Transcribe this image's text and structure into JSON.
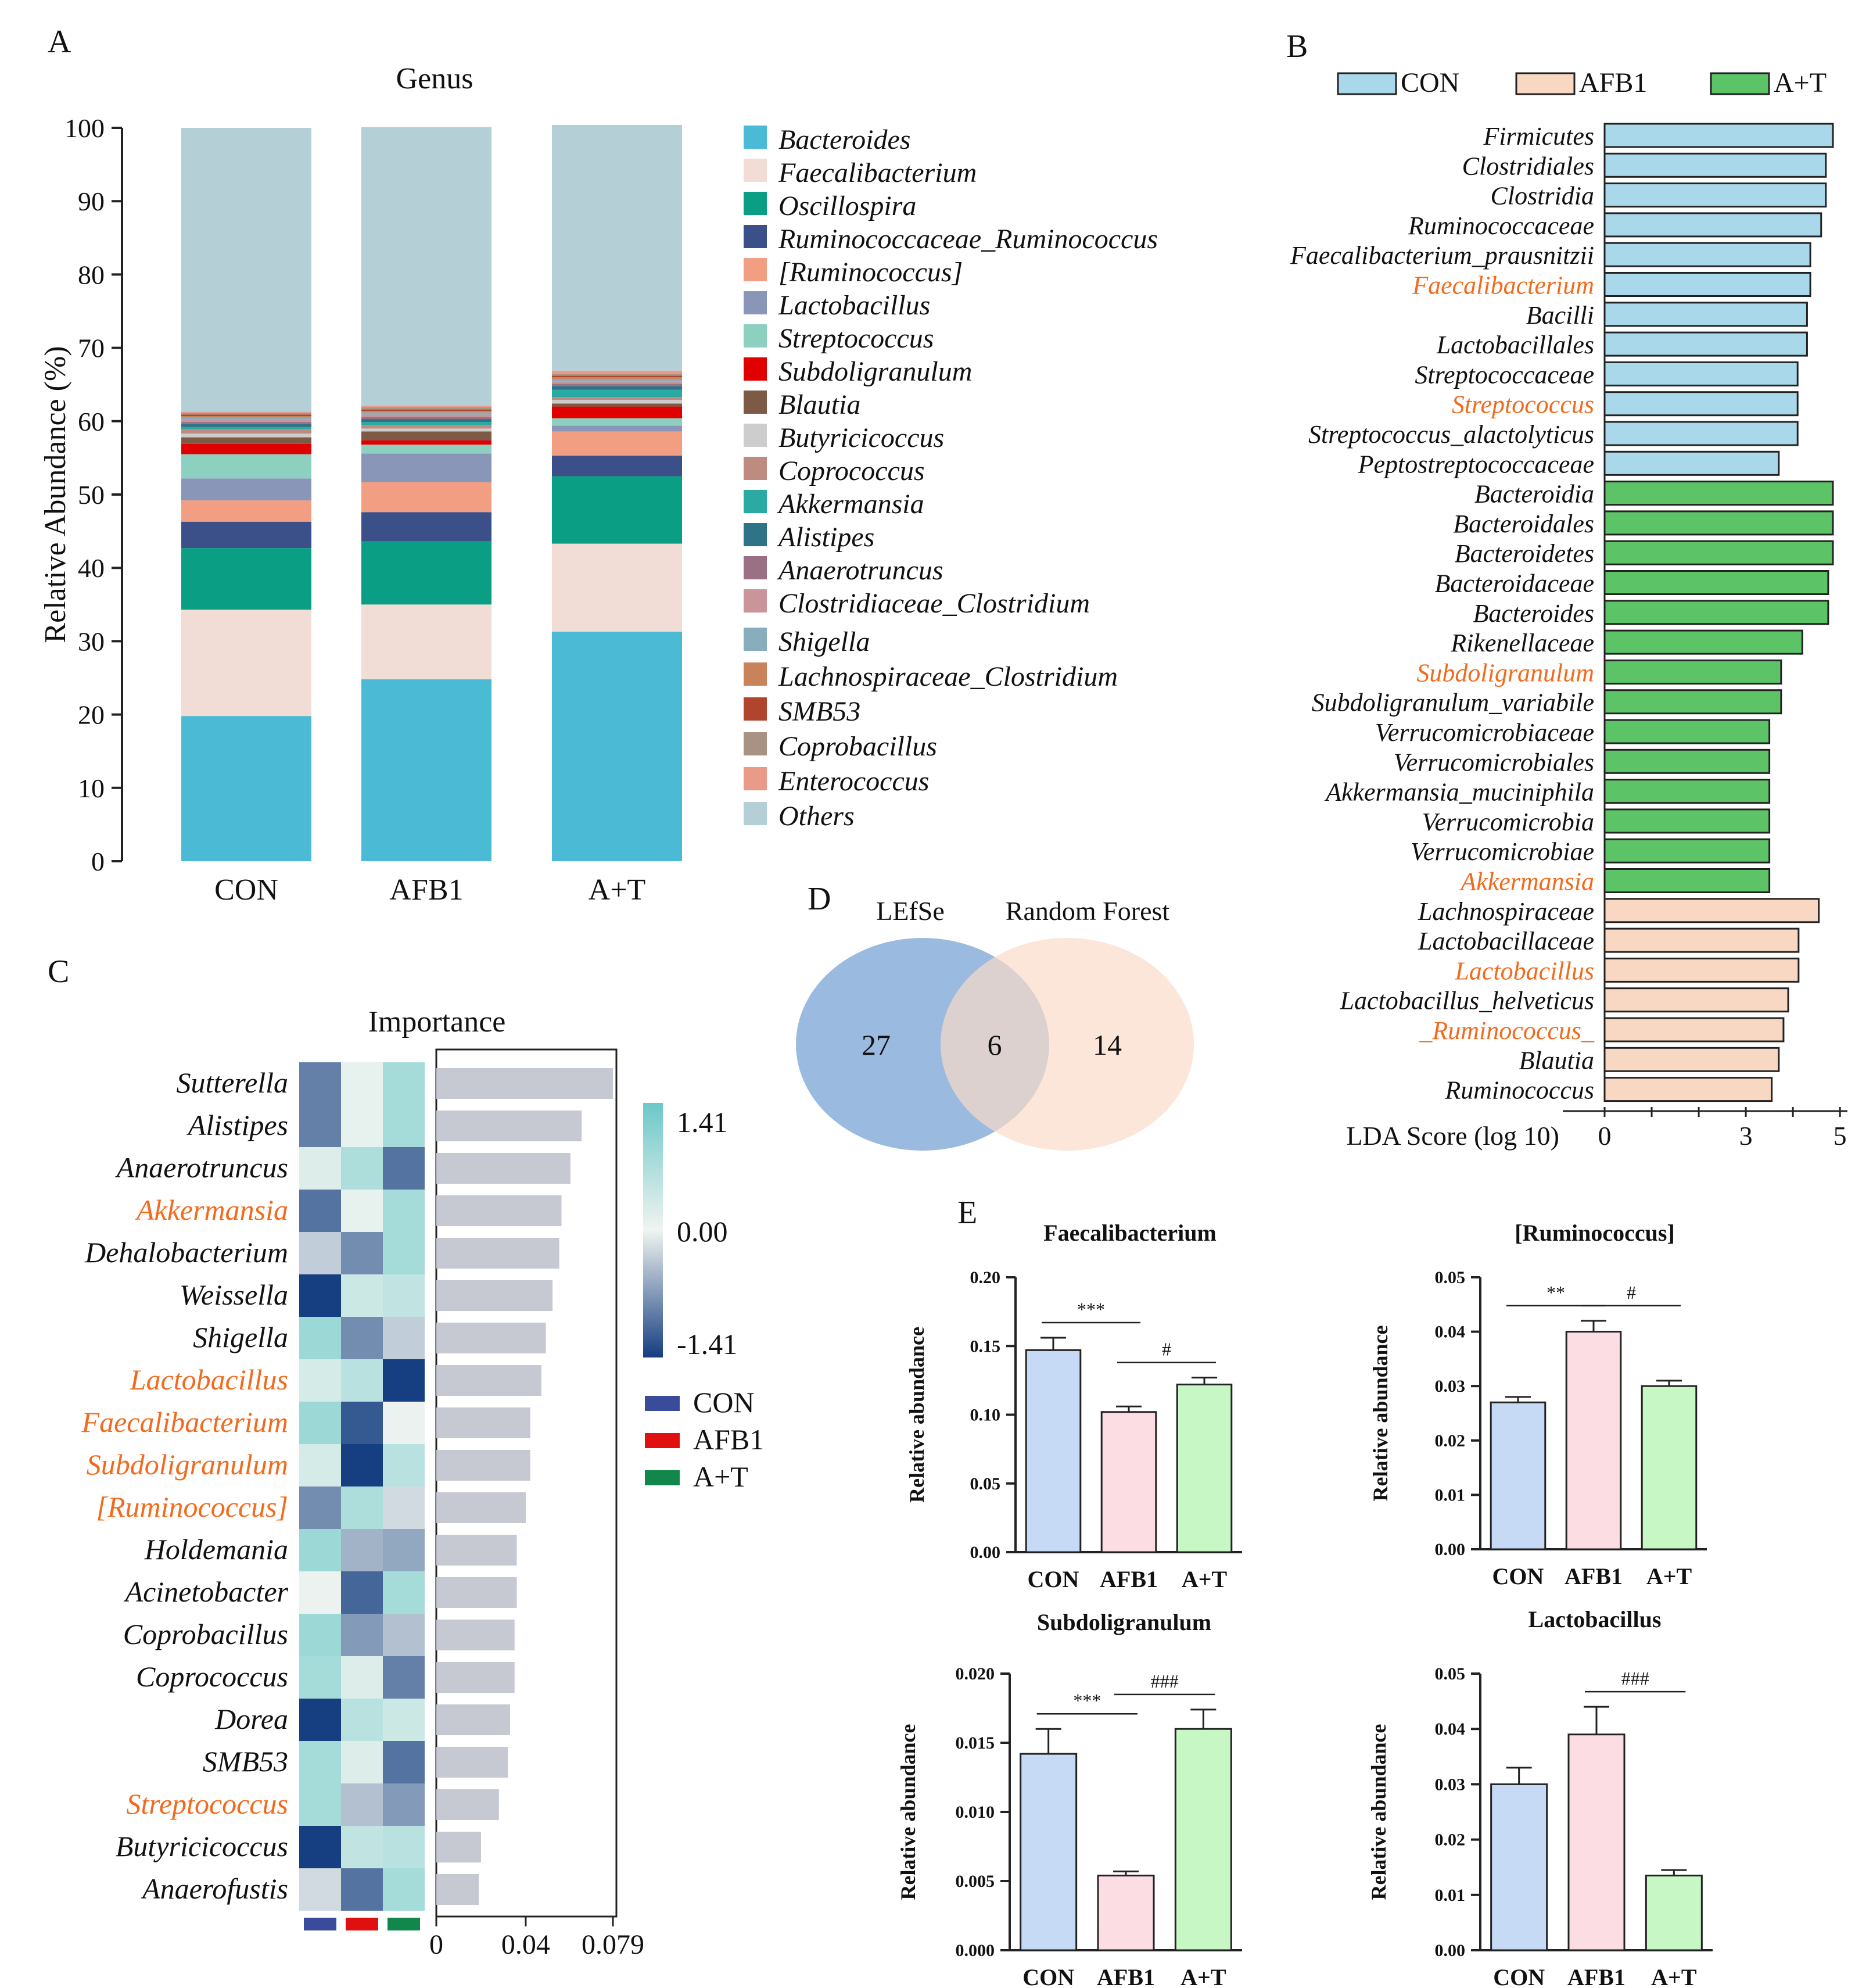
{
  "chart_data": [
    {
      "panel": "A",
      "type": "stacked-bar",
      "title": "Genus",
      "ylabel": "Relative Abundance (%)",
      "ylim": [
        0,
        100
      ],
      "yticks": [
        "0",
        "10",
        "20",
        "30",
        "40",
        "50",
        "60",
        "70",
        "80",
        "90",
        "100"
      ],
      "categories": [
        "CON",
        "AFB1",
        "A+T"
      ],
      "series": [
        {
          "name": "Bacteroides",
          "color": "#4BBAD4",
          "values": [
            19.8,
            24.8,
            31.3
          ]
        },
        {
          "name": "Faecalibacterium",
          "color": "#F2DCD6",
          "values": [
            14.5,
            10.2,
            12.0
          ]
        },
        {
          "name": "Oscillospira",
          "color": "#0A9E84",
          "values": [
            8.4,
            8.6,
            9.2
          ]
        },
        {
          "name": "Ruminococcaceae_Ruminococcus",
          "color": "#3B4F89",
          "values": [
            3.6,
            4.0,
            2.8
          ]
        },
        {
          "name": "[Ruminococcus]",
          "color": "#F29E83",
          "values": [
            2.9,
            4.1,
            3.3
          ]
        },
        {
          "name": "Lactobacillus",
          "color": "#8A96B8",
          "values": [
            3.0,
            3.9,
            0.8
          ]
        },
        {
          "name": "Streptococcus",
          "color": "#8ED0C0",
          "values": [
            3.3,
            1.2,
            1.0
          ]
        },
        {
          "name": "Subdoligranulum",
          "color": "#E00000",
          "values": [
            1.4,
            0.6,
            1.6
          ]
        },
        {
          "name": "Blautia",
          "color": "#7C5A45",
          "values": [
            0.9,
            1.2,
            0.4
          ]
        },
        {
          "name": "Butyricicoccus",
          "color": "#CDCDCD",
          "values": [
            0.5,
            0.4,
            0.5
          ]
        },
        {
          "name": "Coprococcus",
          "color": "#BE8B80",
          "values": [
            0.6,
            0.5,
            0.4
          ]
        },
        {
          "name": "Akkermansia",
          "color": "#2BA9A3",
          "values": [
            0.3,
            0.4,
            1.0
          ]
        },
        {
          "name": "Alistipes",
          "color": "#2F7387",
          "values": [
            0.4,
            0.4,
            0.5
          ]
        },
        {
          "name": "Anaerotruncus",
          "color": "#9A7085",
          "values": [
            0.3,
            0.3,
            0.3
          ]
        },
        {
          "name": "Clostridiaceae_Clostridium",
          "color": "#C9959B",
          "values": [
            0.3,
            0.3,
            0.3
          ]
        },
        {
          "name": "Shigella",
          "color": "#88AEBD",
          "values": [
            0.3,
            0.3,
            0.3
          ]
        },
        {
          "name": "Lachnospiraceae_Clostridium",
          "color": "#C9835A",
          "values": [
            0.2,
            0.2,
            0.3
          ]
        },
        {
          "name": "SMB53",
          "color": "#B0442D",
          "values": [
            0.2,
            0.2,
            0.2
          ]
        },
        {
          "name": "Coprobacillus",
          "color": "#A89284",
          "values": [
            0.2,
            0.3,
            0.3
          ]
        },
        {
          "name": "Enterococcus",
          "color": "#E99A89",
          "values": [
            0.2,
            0.2,
            0.4
          ]
        },
        {
          "name": "Others",
          "color": "#B5CFD6",
          "values": [
            38.7,
            38.0,
            33.5
          ]
        }
      ]
    },
    {
      "panel": "B",
      "type": "bar",
      "orientation": "horizontal",
      "xlabel": "LDA Score (log 10)",
      "xlim": [
        0,
        5
      ],
      "xticks": [
        "0",
        "3",
        "5"
      ],
      "legend": [
        {
          "name": "CON",
          "color": "#A9D8EA"
        },
        {
          "name": "AFB1",
          "color": "#F8D8C2"
        },
        {
          "name": "A+T",
          "color": "#5CC367"
        }
      ],
      "bars": [
        {
          "label": "Firmicutes",
          "value": 4.85,
          "group": "CON",
          "highlight": false
        },
        {
          "label": "Clostridiales",
          "value": 4.7,
          "group": "CON",
          "highlight": false
        },
        {
          "label": "Clostridia",
          "value": 4.7,
          "group": "CON",
          "highlight": false
        },
        {
          "label": "Ruminococcaceae",
          "value": 4.6,
          "group": "CON",
          "highlight": false
        },
        {
          "label": "Faecalibacterium_prausnitzii",
          "value": 4.37,
          "group": "CON",
          "highlight": false
        },
        {
          "label": "Faecalibacterium",
          "value": 4.37,
          "group": "CON",
          "highlight": true
        },
        {
          "label": "Bacilli",
          "value": 4.3,
          "group": "CON",
          "highlight": false
        },
        {
          "label": "Lactobacillales",
          "value": 4.3,
          "group": "CON",
          "highlight": false
        },
        {
          "label": "Streptococcaceae",
          "value": 4.1,
          "group": "CON",
          "highlight": false
        },
        {
          "label": "Streptococcus",
          "value": 4.1,
          "group": "CON",
          "highlight": true
        },
        {
          "label": "Streptococcus_alactolyticus",
          "value": 4.1,
          "group": "CON",
          "highlight": false
        },
        {
          "label": "Peptostreptococcaceae",
          "value": 3.7,
          "group": "CON",
          "highlight": false
        },
        {
          "label": "Bacteroidia",
          "value": 4.85,
          "group": "A+T",
          "highlight": false
        },
        {
          "label": "Bacteroidales",
          "value": 4.85,
          "group": "A+T",
          "highlight": false
        },
        {
          "label": "Bacteroidetes",
          "value": 4.85,
          "group": "A+T",
          "highlight": false
        },
        {
          "label": "Bacteroidaceae",
          "value": 4.75,
          "group": "A+T",
          "highlight": false
        },
        {
          "label": "Bacteroides",
          "value": 4.75,
          "group": "A+T",
          "highlight": false
        },
        {
          "label": "Rikenellaceae",
          "value": 4.2,
          "group": "A+T",
          "highlight": false
        },
        {
          "label": "Subdoligranulum",
          "value": 3.75,
          "group": "A+T",
          "highlight": true
        },
        {
          "label": "Subdoligranulum_variabile",
          "value": 3.75,
          "group": "A+T",
          "highlight": false
        },
        {
          "label": "Verrucomicrobiaceae",
          "value": 3.5,
          "group": "A+T",
          "highlight": false
        },
        {
          "label": "Verrucomicrobiales",
          "value": 3.5,
          "group": "A+T",
          "highlight": false
        },
        {
          "label": "Akkermansia_muciniphila",
          "value": 3.5,
          "group": "A+T",
          "highlight": false
        },
        {
          "label": "Verrucomicrobia",
          "value": 3.5,
          "group": "A+T",
          "highlight": false
        },
        {
          "label": "Verrucomicrobiae",
          "value": 3.5,
          "group": "A+T",
          "highlight": false
        },
        {
          "label": "Akkermansia",
          "value": 3.5,
          "group": "A+T",
          "highlight": true
        },
        {
          "label": "Lachnospiraceae",
          "value": 4.55,
          "group": "AFB1",
          "highlight": false
        },
        {
          "label": "Lactobacillaceae",
          "value": 4.12,
          "group": "AFB1",
          "highlight": false
        },
        {
          "label": "Lactobacillus",
          "value": 4.12,
          "group": "AFB1",
          "highlight": true
        },
        {
          "label": "Lactobacillus_helveticus",
          "value": 3.9,
          "group": "AFB1",
          "highlight": false
        },
        {
          "label": "_Ruminococcus_",
          "value": 3.8,
          "group": "AFB1",
          "highlight": true
        },
        {
          "label": "Blautia",
          "value": 3.7,
          "group": "AFB1",
          "highlight": false
        },
        {
          "label": "Ruminococcus",
          "value": 3.55,
          "group": "AFB1",
          "highlight": false
        }
      ]
    },
    {
      "panel": "C",
      "type": "heatmap",
      "title": "Importance",
      "xlim": [
        0,
        0.079
      ],
      "xticks": [
        "0",
        "0.04",
        "0.079"
      ],
      "colorbar": {
        "max": "1.41",
        "mid": "0.00",
        "min": "-1.41"
      },
      "groups": [
        {
          "name": "CON",
          "color": "#3A4B9A"
        },
        {
          "name": "AFB1",
          "color": "#E01010"
        },
        {
          "name": "A+T",
          "color": "#12874B"
        }
      ],
      "rows": [
        {
          "label": "Sutterella",
          "importance": 0.079,
          "z": [
            -0.9,
            0.1,
            0.8
          ],
          "highlight": false
        },
        {
          "label": "Alistipes",
          "importance": 0.065,
          "z": [
            -0.9,
            0.1,
            0.8
          ],
          "highlight": false
        },
        {
          "label": "Anaerotruncus",
          "importance": 0.06,
          "z": [
            0.2,
            0.7,
            -1.0
          ],
          "highlight": false
        },
        {
          "label": "Akkermansia",
          "importance": 0.056,
          "z": [
            -1.0,
            0.1,
            0.8
          ],
          "highlight": true
        },
        {
          "label": "Dehalobacterium",
          "importance": 0.055,
          "z": [
            -0.3,
            -0.8,
            0.8
          ],
          "highlight": false
        },
        {
          "label": "Weissella",
          "importance": 0.052,
          "z": [
            -1.4,
            0.4,
            0.5
          ],
          "highlight": false
        },
        {
          "label": "Shigella",
          "importance": 0.049,
          "z": [
            0.9,
            -0.8,
            -0.3
          ],
          "highlight": false
        },
        {
          "label": "Lactobacillus",
          "importance": 0.047,
          "z": [
            0.3,
            0.6,
            -1.4
          ],
          "highlight": true
        },
        {
          "label": "Faecalibacterium",
          "importance": 0.042,
          "z": [
            0.9,
            -1.2,
            0.05
          ],
          "highlight": true
        },
        {
          "label": "Subdoligranulum",
          "importance": 0.042,
          "z": [
            0.3,
            -1.4,
            0.6
          ],
          "highlight": true
        },
        {
          "label": "[Ruminococcus]",
          "importance": 0.04,
          "z": [
            -0.8,
            0.7,
            -0.2
          ],
          "highlight": true
        },
        {
          "label": "Holdemania",
          "importance": 0.036,
          "z": [
            0.9,
            -0.5,
            -0.6
          ],
          "highlight": false
        },
        {
          "label": "Acinetobacter",
          "importance": 0.036,
          "z": [
            0.05,
            -1.1,
            0.8
          ],
          "highlight": false
        },
        {
          "label": "Coprobacillus",
          "importance": 0.035,
          "z": [
            0.9,
            -0.7,
            -0.4
          ],
          "highlight": false
        },
        {
          "label": "Coprococcus",
          "importance": 0.035,
          "z": [
            0.8,
            0.2,
            -0.9
          ],
          "highlight": false
        },
        {
          "label": "Dorea",
          "importance": 0.033,
          "z": [
            -1.4,
            0.6,
            0.4
          ],
          "highlight": false
        },
        {
          "label": "SMB53",
          "importance": 0.032,
          "z": [
            0.8,
            0.2,
            -1.0
          ],
          "highlight": false
        },
        {
          "label": "Streptococcus",
          "importance": 0.028,
          "z": [
            0.8,
            -0.4,
            -0.7
          ],
          "highlight": true
        },
        {
          "label": "Butyricicoccus",
          "importance": 0.02,
          "z": [
            -1.4,
            0.5,
            0.6
          ],
          "highlight": false
        },
        {
          "label": "Anaerofustis",
          "importance": 0.019,
          "z": [
            -0.2,
            -1.0,
            0.8
          ],
          "highlight": false
        }
      ]
    },
    {
      "panel": "D",
      "type": "venn",
      "sets": [
        {
          "name": "LEfSe",
          "only": "27",
          "color": "#8FB3DB"
        },
        {
          "name": "Random Forest",
          "only": "14",
          "color": "#F9DCC9"
        }
      ],
      "intersection": "6"
    },
    {
      "panel": "E",
      "type": "bar",
      "ylabel": "Relative abundance",
      "categories": [
        "CON",
        "AFB1",
        "A+T"
      ],
      "colors": [
        "#C7DAF5",
        "#FBDDE3",
        "#C8F7C6"
      ],
      "subplots": [
        {
          "title": "Faecalibacterium",
          "ylim": [
            0,
            0.2
          ],
          "yticks": [
            "0.00",
            "0.05",
            "0.10",
            "0.15",
            "0.20"
          ],
          "values": [
            0.147,
            0.102,
            0.122
          ],
          "errors": [
            0.009,
            0.004,
            0.005
          ],
          "sig": [
            {
              "from": 0,
              "to": 1,
              "label": "***"
            },
            {
              "from": 1,
              "to": 2,
              "label": "#"
            }
          ]
        },
        {
          "title": "[Ruminococcus]",
          "ylim": [
            0,
            0.05
          ],
          "yticks": [
            "0.00",
            "0.01",
            "0.02",
            "0.03",
            "0.04",
            "0.05"
          ],
          "values": [
            0.027,
            0.04,
            0.03
          ],
          "errors": [
            0.001,
            0.002,
            0.001
          ],
          "sig": [
            {
              "from": 0,
              "to": 1,
              "label": "**"
            },
            {
              "from": 1,
              "to": 2,
              "label": "#"
            }
          ]
        },
        {
          "title": "Subdoligranulum",
          "ylim": [
            0,
            0.02
          ],
          "yticks": [
            "0.000",
            "0.005",
            "0.010",
            "0.015",
            "0.020"
          ],
          "values": [
            0.0142,
            0.0054,
            0.016
          ],
          "errors": [
            0.0018,
            0.0003,
            0.0014
          ],
          "sig": [
            {
              "from": 0,
              "to": 1,
              "label": "***"
            },
            {
              "from": 1,
              "to": 2,
              "label": "###"
            }
          ]
        },
        {
          "title": "Lactobacillus",
          "ylim": [
            0,
            0.05
          ],
          "yticks": [
            "0.00",
            "0.01",
            "0.02",
            "0.03",
            "0.04",
            "0.05"
          ],
          "values": [
            0.03,
            0.039,
            0.0135
          ],
          "errors": [
            0.003,
            0.005,
            0.001
          ],
          "sig": [
            {
              "from": 1,
              "to": 2,
              "label": "###"
            }
          ]
        }
      ]
    }
  ],
  "panel_labels": [
    "A",
    "B",
    "C",
    "D",
    "E"
  ]
}
